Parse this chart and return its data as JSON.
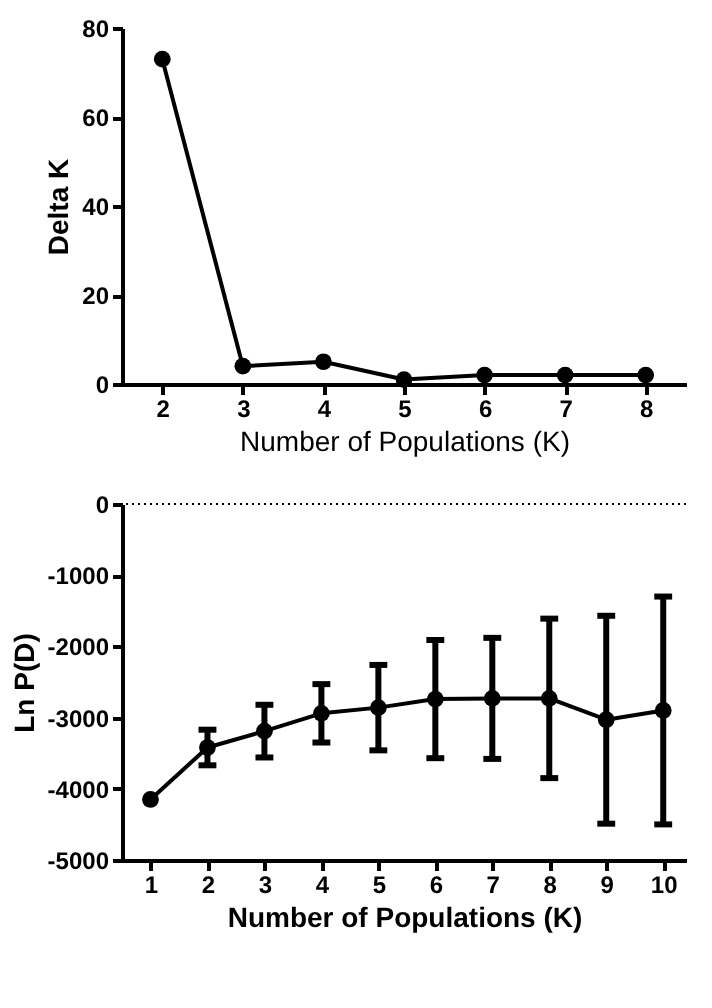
{
  "chart_data": [
    {
      "type": "line",
      "x": [
        2,
        3,
        4,
        5,
        6,
        7,
        8
      ],
      "values": [
        73,
        4,
        5,
        1,
        2,
        2,
        2
      ],
      "color": "#000000",
      "marker": "circle",
      "line_style": "solid",
      "xlabel": "Number of Populations (K)",
      "ylabel": "Delta K",
      "xlim": [
        1.5,
        8.5
      ],
      "xticks": [
        2,
        3,
        4,
        5,
        6,
        7,
        8
      ],
      "ylim": [
        0,
        80
      ],
      "yticks": [
        0,
        20,
        40,
        60,
        80
      ],
      "grid": false
    },
    {
      "type": "line",
      "x": [
        1,
        2,
        3,
        4,
        5,
        6,
        7,
        8,
        9,
        10
      ],
      "values": [
        -4150,
        -3420,
        -3190,
        -2940,
        -2860,
        -2740,
        -2730,
        -2730,
        -3030,
        -2900
      ],
      "errors": [
        null,
        250,
        370,
        410,
        600,
        830,
        850,
        1120,
        1460,
        1600
      ],
      "color": "#000000",
      "marker": "circle",
      "line_style": "solid",
      "xlabel": "Number of Populations (K)",
      "ylabel": "Ln P(D)",
      "xlim": [
        0.5,
        10.4
      ],
      "xticks": [
        1,
        2,
        3,
        4,
        5,
        6,
        7,
        8,
        9,
        10
      ],
      "ylim": [
        -5000,
        0
      ],
      "yticks": [
        -5000,
        -4000,
        -3000,
        -2000,
        -1000,
        0
      ],
      "grid": false,
      "ref_lines": [
        {
          "axis": "y",
          "value": 0,
          "line_style": "dotted",
          "color": "#000000"
        }
      ]
    }
  ]
}
